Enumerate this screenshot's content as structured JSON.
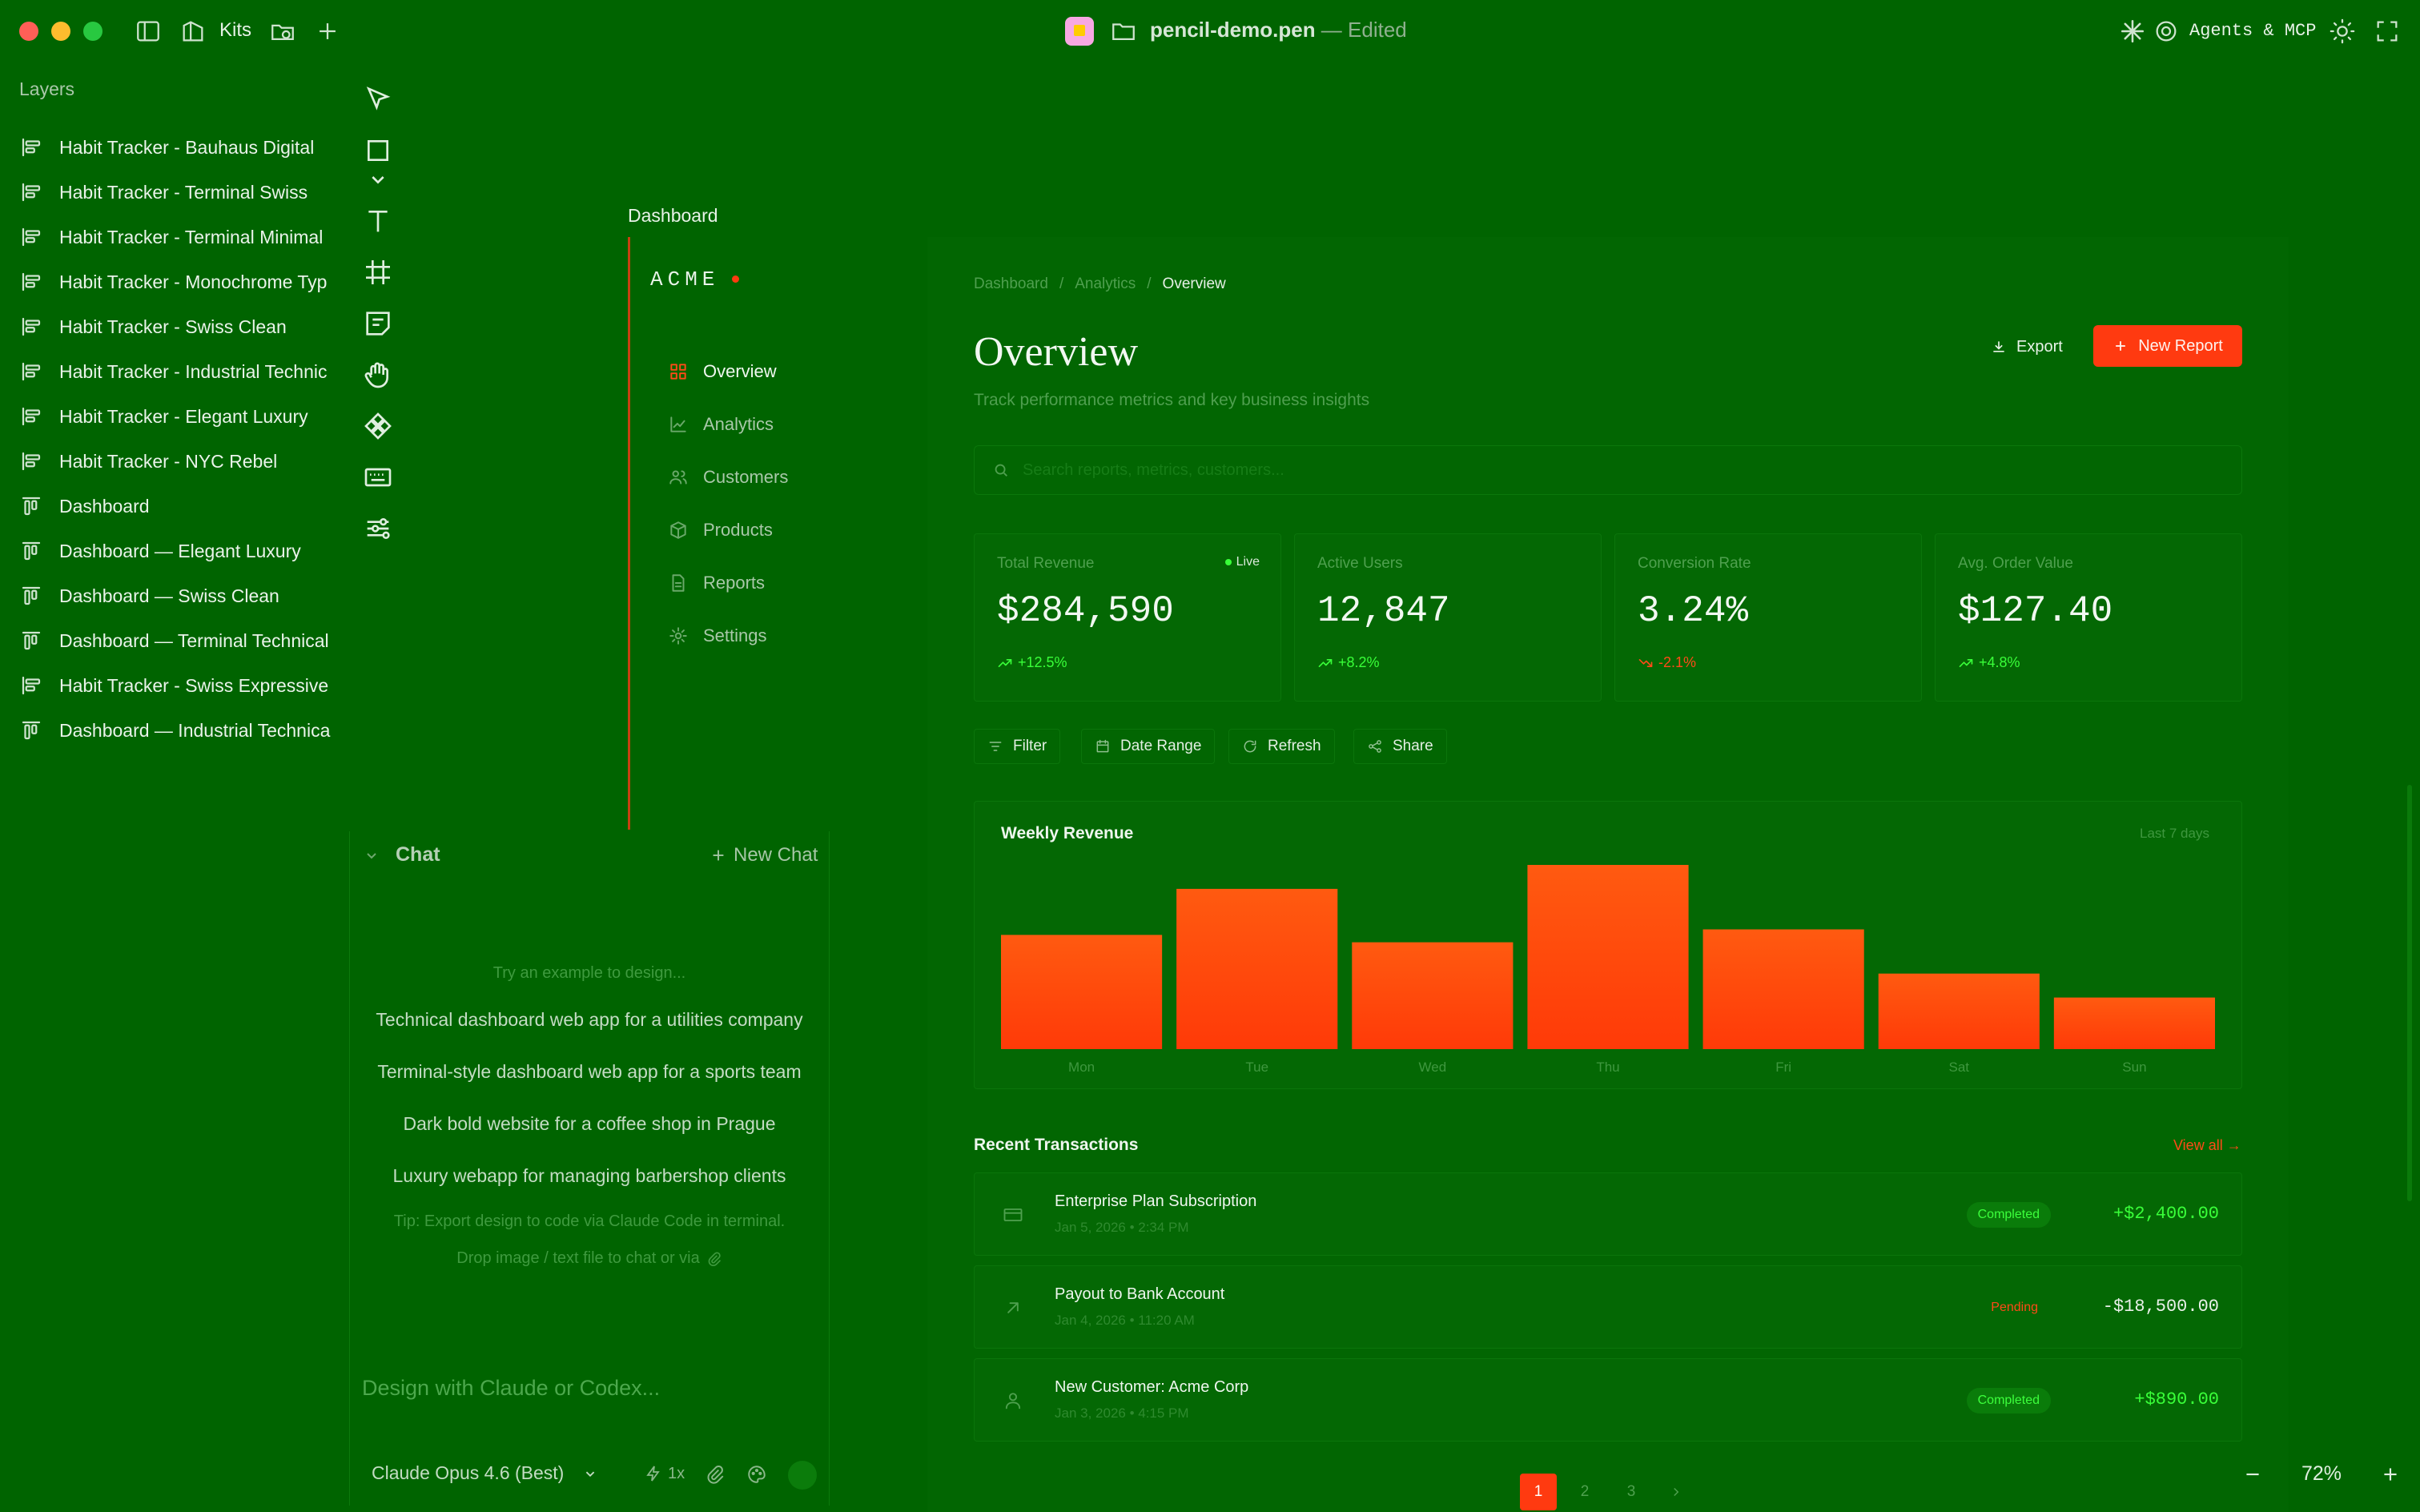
{
  "titlebar": {
    "kits_label": "Kits",
    "doc_name": "pencil-demo.pen",
    "doc_status": " — Edited",
    "agents_label": "Agents & MCP"
  },
  "layers": {
    "title": "Layers",
    "items": [
      {
        "label": "Habit Tracker - Bauhaus Digital",
        "icon": "frame-horizontal-icon"
      },
      {
        "label": "Habit Tracker - Terminal Swiss",
        "icon": "frame-horizontal-icon"
      },
      {
        "label": "Habit Tracker - Terminal Minimal",
        "icon": "frame-horizontal-icon"
      },
      {
        "label": "Habit Tracker - Monochrome Typ",
        "icon": "frame-horizontal-icon"
      },
      {
        "label": "Habit Tracker - Swiss Clean",
        "icon": "frame-horizontal-icon"
      },
      {
        "label": "Habit Tracker - Industrial Technic",
        "icon": "frame-horizontal-icon"
      },
      {
        "label": "Habit Tracker - Elegant Luxury",
        "icon": "frame-horizontal-icon"
      },
      {
        "label": "Habit Tracker - NYC Rebel",
        "icon": "frame-horizontal-icon"
      },
      {
        "label": "Dashboard",
        "icon": "frame-vertical-icon"
      },
      {
        "label": "Dashboard — Elegant Luxury",
        "icon": "frame-vertical-icon"
      },
      {
        "label": "Dashboard — Swiss Clean",
        "icon": "frame-vertical-icon"
      },
      {
        "label": "Dashboard — Terminal Technical",
        "icon": "frame-vertical-icon"
      },
      {
        "label": "Habit Tracker - Swiss Expressive",
        "icon": "frame-horizontal-icon"
      },
      {
        "label": "Dashboard — Industrial Technica",
        "icon": "frame-vertical-icon"
      }
    ]
  },
  "chat": {
    "title": "Chat",
    "new_chat": "New Chat",
    "hint": "Try an example to design...",
    "examples": [
      "Technical dashboard web app for a utilities company",
      "Terminal-style dashboard web app for a sports team",
      "Dark bold website for a coffee shop in Prague",
      "Luxury webapp for managing barbershop clients"
    ],
    "tip": "Tip: Export design to code via Claude Code in terminal.",
    "drop": "Drop image / text file to chat or via",
    "input_placeholder": "Design with Claude or Codex...",
    "model": "Claude Opus 4.6 (Best)",
    "speed": "1x"
  },
  "canvas": {
    "artboard_label": "Dashboard",
    "zoom": "72%"
  },
  "dashboard": {
    "brand": "ACME",
    "nav": [
      {
        "label": "Overview",
        "icon": "grid-icon",
        "active": true
      },
      {
        "label": "Analytics",
        "icon": "line-chart-icon",
        "active": false
      },
      {
        "label": "Customers",
        "icon": "users-icon",
        "active": false
      },
      {
        "label": "Products",
        "icon": "box-icon",
        "active": false
      },
      {
        "label": "Reports",
        "icon": "file-icon",
        "active": false
      },
      {
        "label": "Settings",
        "icon": "gear-icon",
        "active": false
      }
    ],
    "breadcrumbs": [
      "Dashboard",
      "Analytics",
      "Overview"
    ],
    "title": "Overview",
    "subtitle": "Track performance metrics and key business insights",
    "export_label": "Export",
    "new_report_label": "New Report",
    "search_placeholder": "Search reports, metrics, customers...",
    "stats": [
      {
        "label": "Total Revenue",
        "value": "$284,590",
        "delta": "+12.5%",
        "trend": "up",
        "live": "Live"
      },
      {
        "label": "Active Users",
        "value": "12,847",
        "delta": "+8.2%",
        "trend": "up"
      },
      {
        "label": "Conversion Rate",
        "value": "3.24%",
        "delta": "-2.1%",
        "trend": "down"
      },
      {
        "label": "Avg. Order Value",
        "value": "$127.40",
        "delta": "+4.8%",
        "trend": "up"
      }
    ],
    "toolbar": [
      "Filter",
      "Date Range",
      "Refresh",
      "Share"
    ],
    "transactions_title": "Recent Transactions",
    "view_all": "View all →",
    "transactions": [
      {
        "name": "Enterprise Plan Subscription",
        "date": "Jan 5, 2026 • 2:34 PM",
        "status": "Completed",
        "amount": "+$2,400.00",
        "icon": "card-icon"
      },
      {
        "name": "Payout to Bank Account",
        "date": "Jan 4, 2026 • 11:20 AM",
        "status": "Pending",
        "amount": "-$18,500.00",
        "icon": "arrow-up-right-icon"
      },
      {
        "name": "New Customer: Acme Corp",
        "date": "Jan 3, 2026 • 4:15 PM",
        "status": "Completed",
        "amount": "+$890.00",
        "icon": "user-icon"
      }
    ],
    "pages": [
      "1",
      "2",
      "3"
    ]
  },
  "chart_data": {
    "type": "bar",
    "title": "Weekly Revenue",
    "range_label": "Last 7 days",
    "categories": [
      "Mon",
      "Tue",
      "Wed",
      "Thu",
      "Fri",
      "Sat",
      "Sun"
    ],
    "values": [
      62,
      87,
      58,
      100,
      65,
      41,
      28
    ],
    "ylim": [
      0,
      100
    ],
    "grid": false,
    "legend": "none"
  },
  "colors": {
    "accent": "#ff3a10",
    "positive": "#39ff39",
    "negative": "#ff4a18",
    "background": "#006400"
  }
}
